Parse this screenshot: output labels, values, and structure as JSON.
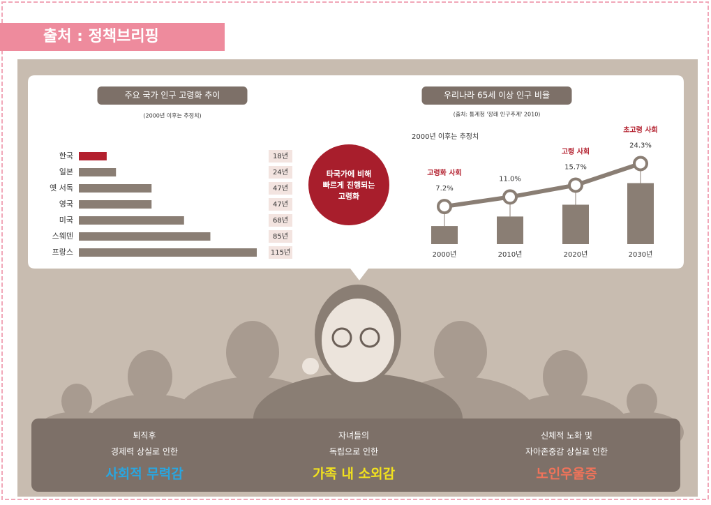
{
  "header": {
    "title": "출처 : 정책브리핑"
  },
  "chart_data": [
    {
      "type": "hbar",
      "title": "주요 국가 인구 고령화 추이",
      "subtitle": "(2000년 이후는 추정치)",
      "categories": [
        "한국",
        "일본",
        "옛 서독",
        "영국",
        "미국",
        "스웨덴",
        "프랑스"
      ],
      "values": [
        18,
        24,
        47,
        47,
        68,
        85,
        115
      ],
      "value_labels": [
        "18년",
        "24년",
        "47년",
        "47년",
        "68년",
        "85년",
        "115년"
      ],
      "colors": [
        "#b3202e",
        "#8a7e74",
        "#8a7e74",
        "#8a7e74",
        "#8a7e74",
        "#8a7e74",
        "#8a7e74"
      ]
    },
    {
      "type": "bar-line",
      "title": "우리나라 65세 이상 인구 비율",
      "source": "(출처: 통계청 '장래 인구추계' 2010)",
      "note": "2000년 이후는 추정치",
      "categories": [
        "2000년",
        "2010년",
        "2020년",
        "2030년"
      ],
      "values": [
        7.2,
        11.0,
        15.7,
        24.3
      ],
      "value_labels": [
        "7.2%",
        "11.0%",
        "15.7%",
        "24.3%"
      ],
      "annotations": [
        "고령화 사회",
        null,
        "고령 사회",
        "초고령 사회"
      ],
      "color": "#8a7e74",
      "annotation_color": "#b3202e"
    }
  ],
  "center": {
    "text": [
      "타국가에 비해",
      "빠르게 진행되는",
      "고령화"
    ]
  },
  "panels": [
    {
      "lines": [
        "퇴직후",
        "경제력 상실로 인한"
      ],
      "highlight": "사회적 무력감",
      "color": "#29a6e0"
    },
    {
      "lines": [
        "자녀들의",
        "독립으로 인한"
      ],
      "highlight": "가족 내 소외감",
      "color": "#f2e21e"
    },
    {
      "lines": [
        "신체적 노화 및",
        "자아존중감 상실로 인한"
      ],
      "highlight": "노인우울증",
      "color": "#f0735a"
    }
  ]
}
